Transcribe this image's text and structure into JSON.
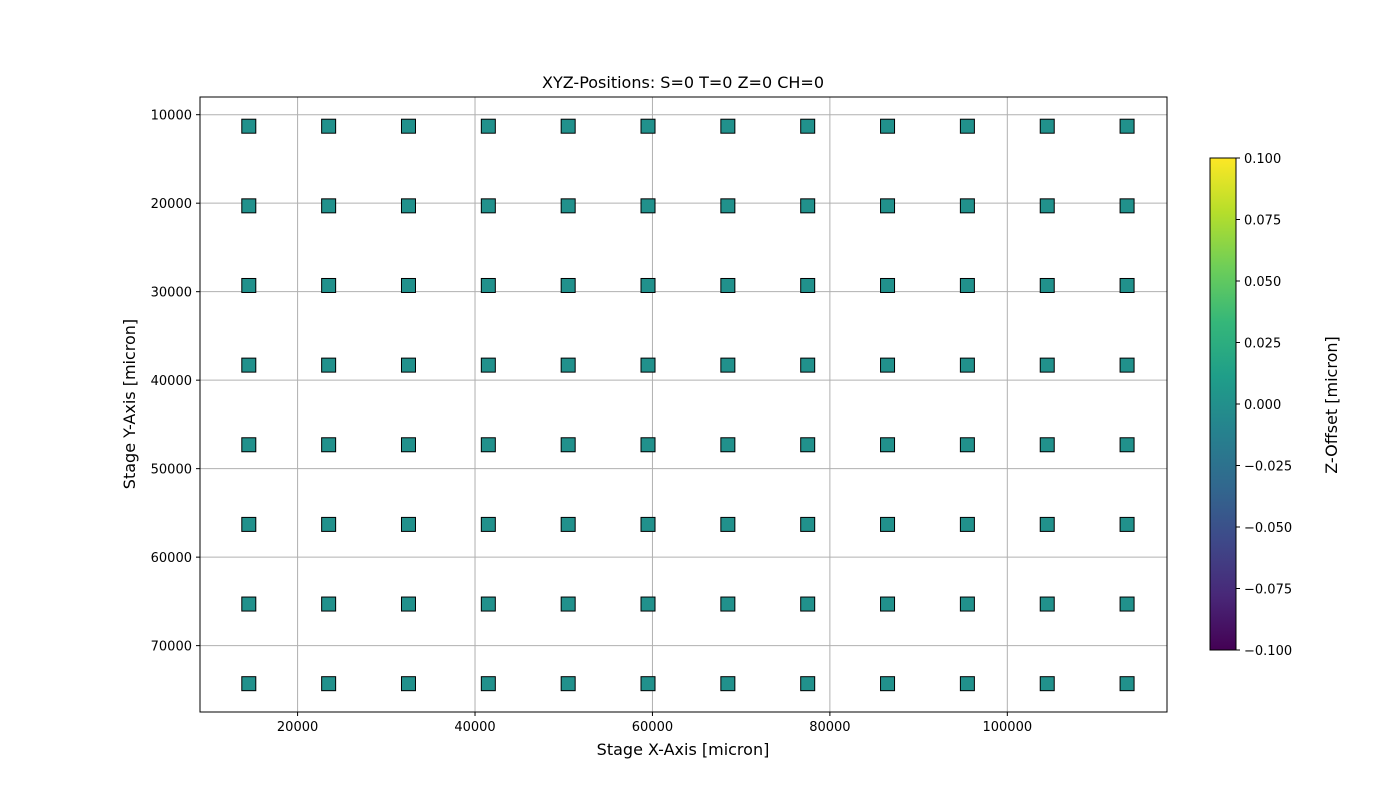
{
  "chart_data": {
    "type": "scatter",
    "title": "XYZ-Positions:  S=0 T=0 Z=0 CH=0",
    "xlabel": "Stage X-Axis [micron]",
    "ylabel": "Stage Y-Axis [micron]",
    "xlim": [
      9000,
      118000
    ],
    "ylim": [
      77500,
      8000
    ],
    "y_inverted": true,
    "grid": true,
    "marker": "square",
    "xticks": [
      20000,
      40000,
      60000,
      80000,
      100000
    ],
    "xtick_labels": [
      "20000",
      "40000",
      "60000",
      "80000",
      "100000"
    ],
    "yticks": [
      10000,
      20000,
      30000,
      40000,
      50000,
      60000,
      70000
    ],
    "ytick_labels": [
      "10000",
      "20000",
      "30000",
      "40000",
      "50000",
      "60000",
      "70000"
    ],
    "grid_x": [
      14500,
      23500,
      32500,
      41500,
      50500,
      59500,
      68500,
      77500,
      86500,
      95500,
      104500,
      113500
    ],
    "grid_y": [
      11300,
      20300,
      29300,
      38300,
      47300,
      56300,
      65300,
      74300
    ],
    "z_offset_all": 0.0,
    "colorbar": {
      "label": "Z-Offset [micron]",
      "colormap": "viridis",
      "range": [
        -0.1,
        0.1
      ],
      "ticks": [
        0.1,
        0.075,
        0.05,
        0.025,
        0.0,
        -0.025,
        -0.05,
        -0.075,
        -0.1
      ],
      "tick_labels": [
        "0.100",
        "0.075",
        "0.050",
        "0.025",
        "0.000",
        "−0.025",
        "−0.050",
        "−0.075",
        "−0.100"
      ]
    },
    "colors": {
      "marker_fill": "#21918c",
      "marker_edge": "#000000",
      "grid": "#b0b0b0",
      "viridis_stops": [
        "#440154",
        "#482878",
        "#3e4989",
        "#31688e",
        "#26828e",
        "#1f9e89",
        "#35b779",
        "#6ece58",
        "#b5de2b",
        "#fde725"
      ]
    }
  }
}
